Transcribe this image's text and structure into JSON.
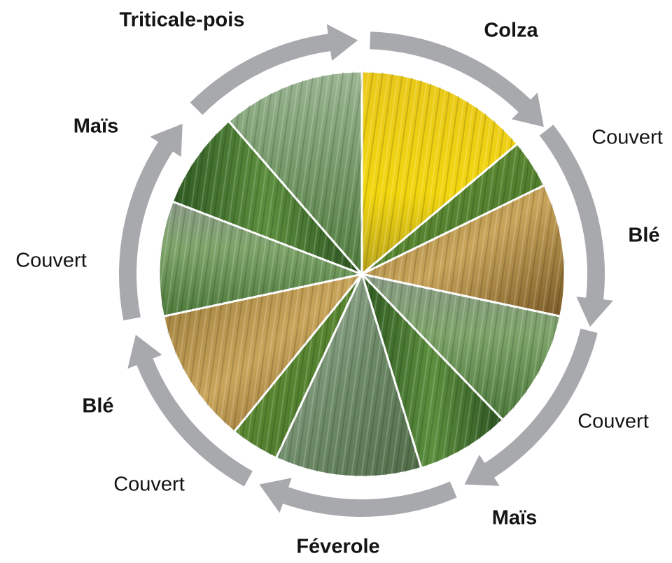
{
  "labels": [
    "Triticale-pois",
    "Colza",
    "Couvert",
    "Blé",
    "Couvert",
    "Maïs",
    "Féverole",
    "Couvert",
    "Blé",
    "Couvert",
    "Maïs"
  ]
}
